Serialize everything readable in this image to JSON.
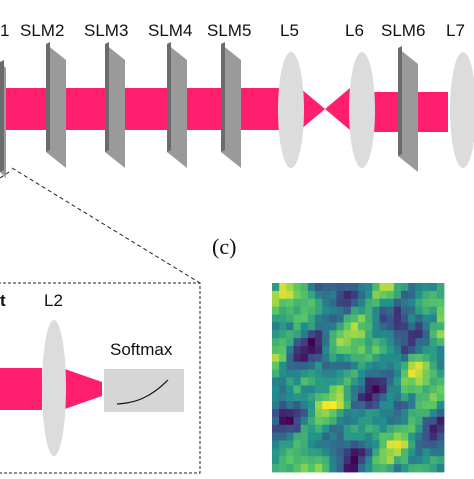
{
  "top_labels": [
    "1",
    "SLM2",
    "SLM3",
    "SLM4",
    "SLM5",
    "L5",
    "L6",
    "SLM6",
    "L7"
  ],
  "inset": {
    "left_label": "t",
    "lens_label": "L2",
    "softmax_label": "Softmax"
  },
  "panel_label": "(c)",
  "colors": {
    "beam": "#ff1f6e",
    "slm_front": "#6b6b6b",
    "slm_side": "#9a9a9a",
    "lens": "#dcdcdc",
    "softmax_box": "#d6d6d6"
  },
  "heatmap": {
    "colormap": "viridis",
    "grid": [
      24,
      24
    ]
  }
}
